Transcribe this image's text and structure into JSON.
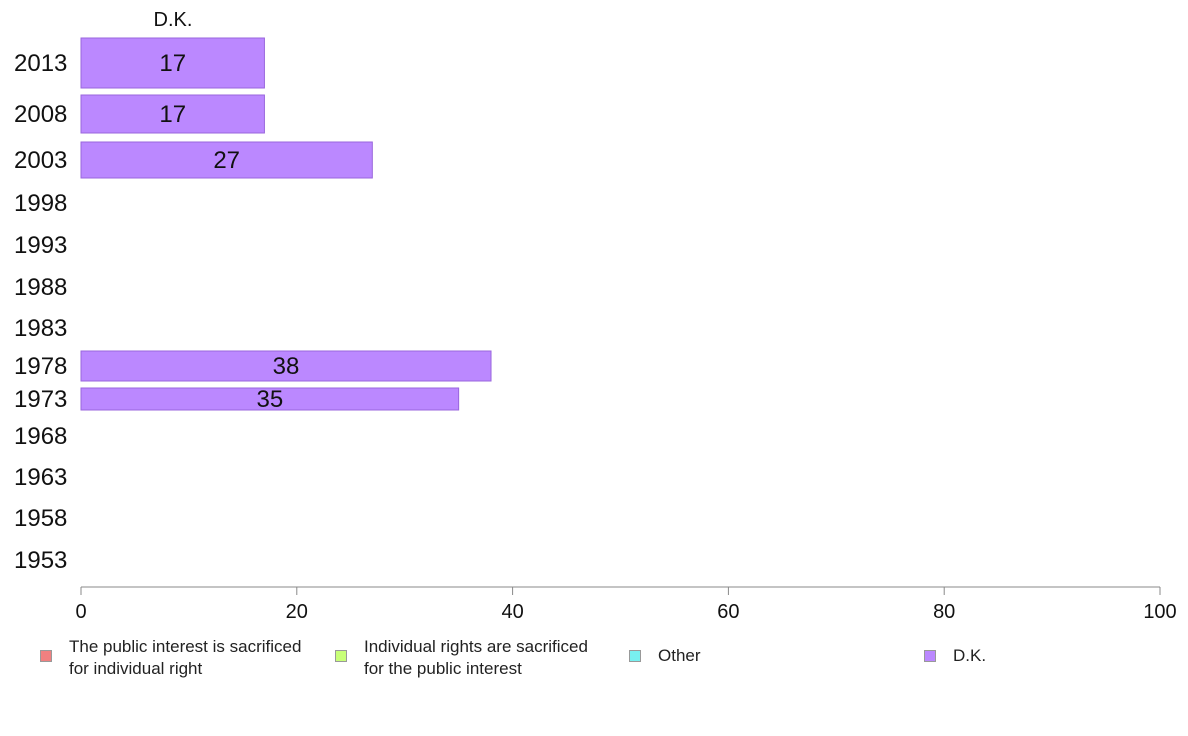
{
  "chart_data": {
    "type": "bar",
    "orientation": "horizontal",
    "stacked": true,
    "categories": [
      "2013",
      "2008",
      "2003",
      "1998",
      "1993",
      "1988",
      "1983",
      "1978",
      "1973",
      "1968",
      "1963",
      "1958",
      "1953"
    ],
    "series": [
      {
        "name": "The public interest is sacrificed\nfor individual right",
        "color": "#f08080",
        "values": [
          null,
          null,
          null,
          null,
          null,
          null,
          null,
          null,
          null,
          null,
          null,
          null,
          null
        ]
      },
      {
        "name": "Individual rights are sacrificed\nfor the public interest",
        "color": "#c8ff78",
        "values": [
          null,
          null,
          null,
          null,
          null,
          null,
          null,
          null,
          null,
          null,
          null,
          null,
          null
        ]
      },
      {
        "name": "Other",
        "color": "#78f0f0",
        "values": [
          null,
          null,
          null,
          null,
          null,
          null,
          null,
          null,
          null,
          null,
          null,
          null,
          null
        ]
      },
      {
        "name": "D.K.",
        "color": "#bb88ff",
        "values": [
          17,
          17,
          27,
          null,
          null,
          null,
          null,
          38,
          35,
          null,
          null,
          null,
          null
        ]
      }
    ],
    "column_header": "D.K.",
    "xlim": [
      0,
      100
    ],
    "xticks": [
      0,
      20,
      40,
      60,
      80,
      100
    ],
    "grid": false,
    "legend_position": "bottom"
  }
}
